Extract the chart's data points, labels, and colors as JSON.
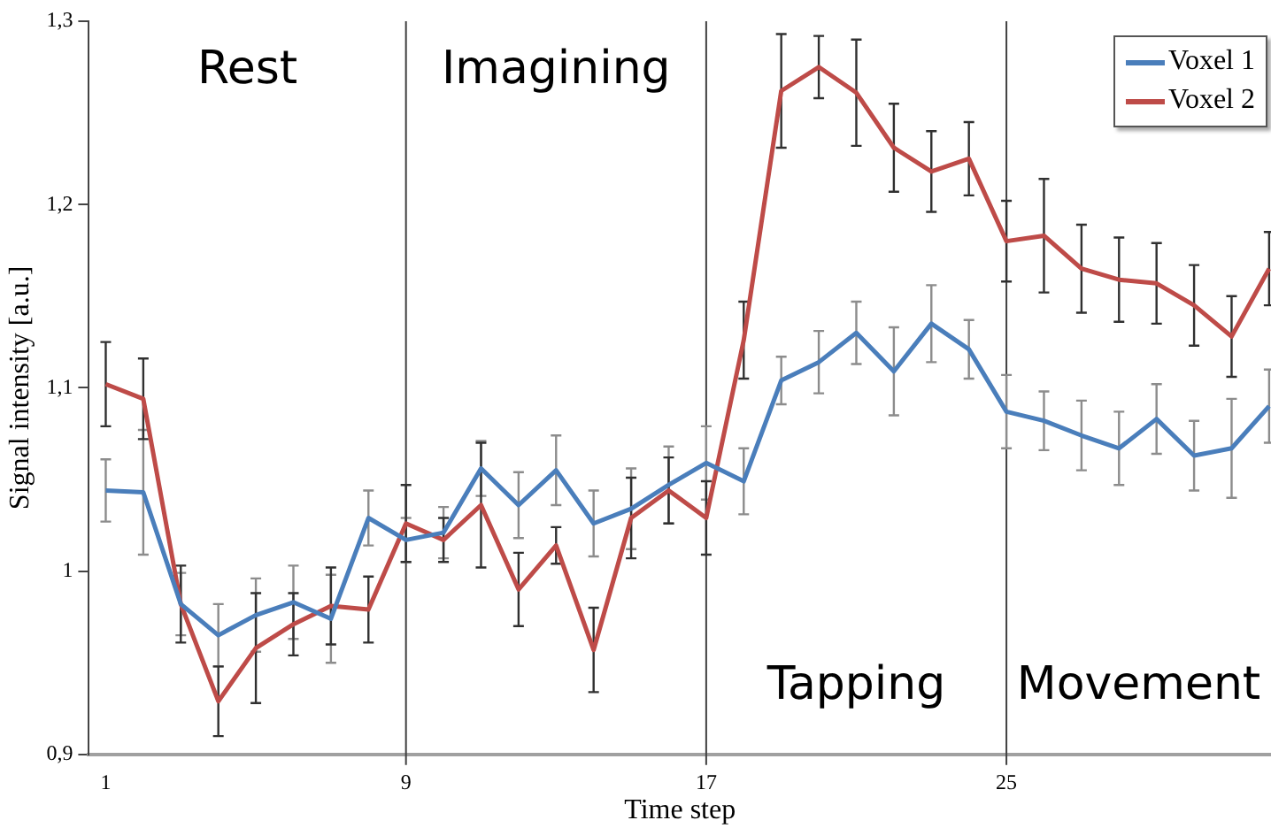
{
  "chart_data": {
    "type": "line",
    "xlabel": "Time step",
    "ylabel": "Signal intensity [a.u.]",
    "x": [
      1,
      2,
      3,
      4,
      5,
      6,
      7,
      8,
      9,
      10,
      11,
      12,
      13,
      14,
      15,
      16,
      17,
      18,
      19,
      20,
      21,
      22,
      23,
      24,
      25,
      26,
      27,
      28,
      29,
      30,
      31,
      32
    ],
    "series": [
      {
        "name": "Voxel 1",
        "color": "#4a7ebb",
        "values": [
          1.044,
          1.043,
          0.982,
          0.965,
          0.976,
          0.983,
          0.974,
          1.029,
          1.017,
          1.021,
          1.056,
          1.036,
          1.055,
          1.026,
          1.034,
          1.047,
          1.059,
          1.049,
          1.104,
          1.114,
          1.13,
          1.109,
          1.135,
          1.121,
          1.087,
          1.082,
          1.074,
          1.067,
          1.083,
          1.063,
          1.067,
          1.09
        ],
        "errors": [
          0.017,
          0.034,
          0.017,
          0.017,
          0.02,
          0.02,
          0.024,
          0.015,
          0.012,
          0.014,
          0.015,
          0.018,
          0.019,
          0.018,
          0.022,
          0.021,
          0.02,
          0.018,
          0.013,
          0.017,
          0.017,
          0.024,
          0.021,
          0.016,
          0.02,
          0.016,
          0.019,
          0.02,
          0.019,
          0.019,
          0.027,
          0.02
        ]
      },
      {
        "name": "Voxel 2",
        "color": "#be4b48",
        "values": [
          1.102,
          1.094,
          0.982,
          0.929,
          0.958,
          0.971,
          0.981,
          0.979,
          1.026,
          1.017,
          1.036,
          0.99,
          1.014,
          0.957,
          1.029,
          1.044,
          1.029,
          1.126,
          1.262,
          1.275,
          1.261,
          1.231,
          1.218,
          1.225,
          1.18,
          1.183,
          1.165,
          1.159,
          1.157,
          1.145,
          1.128,
          1.165
        ],
        "errors": [
          0.023,
          0.022,
          0.021,
          0.019,
          0.03,
          0.017,
          0.021,
          0.018,
          0.021,
          0.012,
          0.034,
          0.02,
          0.01,
          0.023,
          0.022,
          0.018,
          0.02,
          0.021,
          0.031,
          0.017,
          0.029,
          0.024,
          0.022,
          0.02,
          0.022,
          0.031,
          0.024,
          0.023,
          0.022,
          0.022,
          0.022,
          0.02
        ]
      }
    ],
    "xlim": [
      0.55,
      32.05
    ],
    "xticks": [
      1,
      9,
      17,
      25
    ],
    "ylim": [
      0.9,
      1.3
    ],
    "yticks": [
      {
        "value": 0.9,
        "label": "0,9"
      },
      {
        "value": 1,
        "label": "1"
      },
      {
        "value": 1.1,
        "label": "1,1"
      },
      {
        "value": 1.2,
        "label": "1,2"
      },
      {
        "value": 1.3,
        "label": "1,3"
      }
    ],
    "ref_lines": [
      {
        "axis": "x",
        "value": 9,
        "color": "#404040"
      },
      {
        "axis": "x",
        "value": 17,
        "color": "#404040"
      },
      {
        "axis": "x",
        "value": 25,
        "color": "#404040"
      }
    ],
    "annotations": [
      "Rest",
      "Imagining",
      "Tapping",
      "Movement"
    ],
    "grid": false,
    "legend": "top right",
    "marker": "none",
    "line_style": "solid"
  }
}
